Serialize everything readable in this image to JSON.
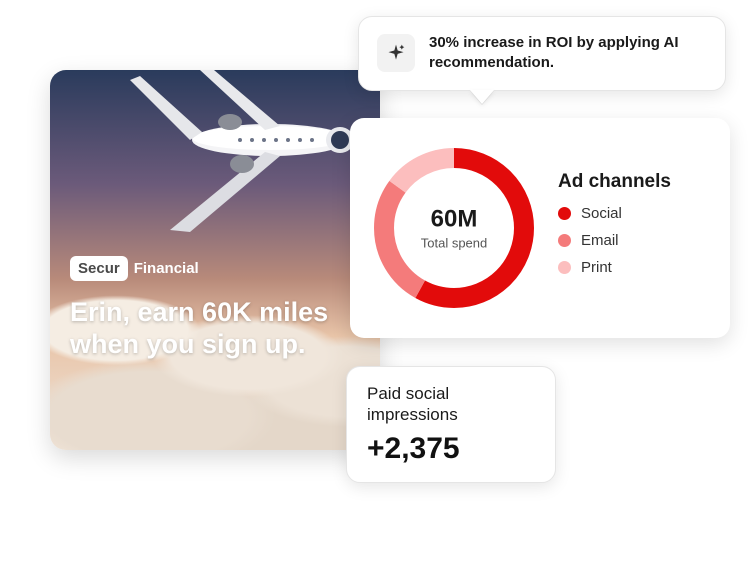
{
  "ad": {
    "brand_box": "Secur",
    "brand_rest": "Financial",
    "headline": "Erin, earn 60K miles when you sign up.",
    "gradient_stops": [
      "#2a3b5c",
      "#6b5a7a",
      "#b88a7a",
      "#e8c4a8",
      "#f0e4d8"
    ]
  },
  "tooltip": {
    "text": "30% increase in ROI by applying AI recommendation.",
    "icon_bg": "#f2f2f2"
  },
  "chart": {
    "type": "donut",
    "center_value": "60M",
    "center_label": "Total spend",
    "legend_title": "Ad channels",
    "thickness": 20,
    "radius": 70,
    "background": "#ffffff",
    "segments": [
      {
        "label": "Social",
        "color": "#e20b0b",
        "fraction": 0.58
      },
      {
        "label": "Email",
        "color": "#f47b7b",
        "fraction": 0.27
      },
      {
        "label": "Print",
        "color": "#fcbebe",
        "fraction": 0.15
      }
    ]
  },
  "stat": {
    "label": "Paid social impressions",
    "value": "+2,375"
  },
  "colors": {
    "text_primary": "#1a1a1a",
    "card_border": "#e5e5e5"
  }
}
